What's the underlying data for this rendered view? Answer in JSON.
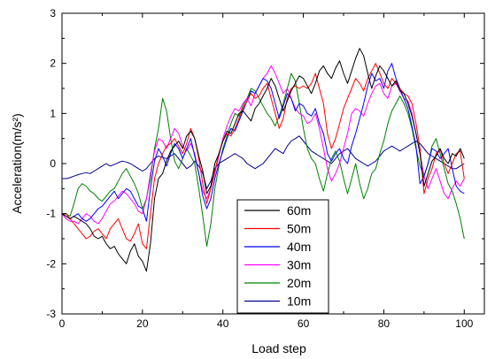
{
  "chart_data": {
    "type": "line",
    "xlabel": "Load step",
    "ylabel": "Acceleration(m/s²)",
    "xlim": [
      0,
      105
    ],
    "ylim": [
      -3,
      3
    ],
    "xticks": [
      0,
      20,
      40,
      60,
      80,
      100
    ],
    "yticks": [
      -3,
      -2,
      -1,
      0,
      1,
      2,
      3
    ],
    "grid": false,
    "legend_position": "bottom-center",
    "x": [
      0,
      1,
      2,
      3,
      4,
      5,
      6,
      7,
      8,
      9,
      10,
      11,
      12,
      13,
      14,
      15,
      16,
      17,
      18,
      19,
      20,
      21,
      22,
      23,
      24,
      25,
      26,
      27,
      28,
      29,
      30,
      31,
      32,
      33,
      34,
      35,
      36,
      37,
      38,
      39,
      40,
      41,
      42,
      43,
      44,
      45,
      46,
      47,
      48,
      49,
      50,
      51,
      52,
      53,
      54,
      55,
      56,
      57,
      58,
      59,
      60,
      61,
      62,
      63,
      64,
      65,
      66,
      67,
      68,
      69,
      70,
      71,
      72,
      73,
      74,
      75,
      76,
      77,
      78,
      79,
      80,
      81,
      82,
      83,
      84,
      85,
      86,
      87,
      88,
      89,
      90,
      91,
      92,
      93,
      94,
      95,
      96,
      97,
      98,
      99,
      100
    ],
    "series": [
      {
        "name": "60m",
        "color": "#000000",
        "values": [
          -1.0,
          -1.05,
          -1.1,
          -1.05,
          -1.1,
          -1.15,
          -1.2,
          -1.3,
          -1.45,
          -1.5,
          -1.45,
          -1.6,
          -1.7,
          -1.65,
          -1.8,
          -1.9,
          -2.0,
          -1.75,
          -1.6,
          -1.85,
          -1.95,
          -2.15,
          -1.6,
          -0.7,
          -0.3,
          -0.2,
          0.05,
          0.25,
          0.35,
          0.45,
          0.3,
          0.55,
          0.65,
          0.5,
          0.15,
          -0.15,
          -0.6,
          -0.45,
          0.0,
          0.2,
          0.45,
          0.65,
          0.6,
          0.8,
          1.0,
          1.05,
          0.95,
          0.85,
          1.1,
          1.2,
          1.35,
          1.5,
          1.7,
          1.55,
          1.3,
          1.05,
          1.25,
          1.45,
          1.6,
          1.75,
          1.7,
          1.55,
          1.4,
          1.6,
          1.85,
          1.95,
          1.8,
          1.7,
          1.9,
          2.05,
          1.8,
          1.6,
          1.85,
          2.1,
          2.3,
          2.15,
          1.8,
          1.5,
          1.75,
          1.95,
          1.85,
          1.7,
          1.55,
          1.65,
          1.45,
          1.4,
          1.2,
          0.95,
          0.6,
          0.2,
          -0.45,
          -0.2,
          0.05,
          0.15,
          0.3,
          0.1,
          0.0,
          0.2,
          0.15,
          0.3,
          0.1
        ]
      },
      {
        "name": "50m",
        "color": "#ff0000",
        "values": [
          -1.0,
          -1.0,
          -1.1,
          -1.2,
          -1.3,
          -1.4,
          -1.5,
          -1.45,
          -1.35,
          -1.3,
          -1.4,
          -1.5,
          -1.3,
          -1.2,
          -1.1,
          -1.3,
          -1.5,
          -1.55,
          -1.4,
          -1.2,
          -1.6,
          -1.7,
          -1.0,
          -0.3,
          0.0,
          0.2,
          0.35,
          0.4,
          0.5,
          0.35,
          0.2,
          0.4,
          0.7,
          0.5,
          0.1,
          -0.4,
          -0.8,
          -0.5,
          -0.15,
          0.2,
          0.45,
          0.6,
          0.55,
          0.7,
          0.9,
          1.1,
          1.25,
          1.4,
          1.3,
          1.35,
          1.5,
          1.6,
          1.3,
          1.0,
          0.7,
          0.9,
          1.3,
          1.5,
          1.55,
          1.5,
          1.55,
          1.5,
          1.6,
          1.8,
          1.5,
          1.2,
          0.6,
          0.3,
          0.5,
          0.8,
          1.1,
          1.3,
          1.5,
          1.7,
          1.6,
          1.45,
          1.7,
          1.85,
          2.0,
          1.8,
          1.6,
          1.5,
          1.7,
          1.6,
          1.5,
          1.4,
          1.35,
          1.2,
          0.8,
          0.3,
          -0.6,
          -0.3,
          -0.1,
          0.2,
          0.3,
          0.0,
          -0.2,
          0.0,
          0.2,
          0.25,
          -0.3
        ]
      },
      {
        "name": "40m",
        "color": "#0000ff",
        "values": [
          -1.0,
          -1.05,
          -1.1,
          -1.05,
          -1.0,
          -1.1,
          -1.15,
          -1.1,
          -1.0,
          -0.9,
          -0.85,
          -0.75,
          -0.65,
          -0.55,
          -0.7,
          -0.6,
          -0.5,
          -0.55,
          -0.7,
          -0.85,
          -0.9,
          -1.15,
          -0.5,
          0.05,
          0.3,
          0.15,
          -0.05,
          0.2,
          0.4,
          0.3,
          0.1,
          0.3,
          0.5,
          0.15,
          -0.2,
          -0.65,
          -0.9,
          -0.7,
          -0.3,
          0.0,
          0.25,
          0.5,
          0.7,
          0.65,
          0.85,
          1.05,
          1.25,
          1.45,
          1.4,
          1.55,
          1.7,
          1.65,
          1.5,
          1.2,
          0.9,
          1.15,
          1.4,
          1.3,
          1.05,
          1.2,
          1.15,
          1.0,
          0.95,
          1.1,
          0.8,
          0.6,
          0.2,
          0.05,
          0.2,
          0.3,
          0.1,
          0.0,
          0.35,
          0.6,
          0.9,
          1.2,
          1.55,
          1.8,
          1.65,
          1.7,
          1.5,
          1.85,
          2.0,
          1.7,
          1.5,
          1.3,
          1.1,
          0.75,
          0.35,
          -0.4,
          -0.25,
          0.0,
          0.3,
          0.25,
          0.1,
          0.2,
          0.3,
          -0.1,
          -0.45,
          -0.55,
          -0.6
        ]
      },
      {
        "name": "30m",
        "color": "#ff00ff",
        "values": [
          -1.0,
          -1.1,
          -1.15,
          -1.15,
          -1.2,
          -1.1,
          -1.0,
          -1.05,
          -1.15,
          -1.2,
          -1.1,
          -0.95,
          -0.8,
          -0.75,
          -0.65,
          -0.55,
          -0.6,
          -0.7,
          -0.8,
          -0.95,
          -1.0,
          -0.7,
          -0.2,
          0.25,
          0.5,
          0.45,
          0.3,
          0.5,
          0.7,
          0.6,
          0.35,
          0.25,
          0.4,
          0.2,
          -0.2,
          -0.55,
          -0.7,
          -0.5,
          -0.2,
          0.15,
          0.5,
          0.75,
          0.95,
          1.1,
          1.05,
          1.2,
          1.3,
          1.15,
          1.4,
          1.55,
          1.7,
          1.8,
          1.95,
          1.8,
          1.6,
          1.4,
          1.5,
          1.3,
          1.1,
          1.0,
          0.95,
          0.8,
          0.85,
          1.0,
          0.7,
          0.3,
          -0.1,
          -0.35,
          -0.2,
          0.0,
          0.3,
          0.6,
          1.0,
          1.1,
          1.05,
          0.95,
          1.2,
          1.4,
          1.55,
          1.6,
          1.4,
          1.3,
          1.55,
          1.6,
          1.45,
          1.3,
          1.25,
          1.0,
          0.6,
          0.2,
          -0.25,
          -0.5,
          -0.3,
          -0.1,
          -0.35,
          -0.6,
          -0.7,
          -0.5,
          -0.35,
          -0.45,
          -0.3
        ]
      },
      {
        "name": "20m",
        "color": "#008000",
        "values": [
          -1.0,
          -1.0,
          -1.05,
          -0.8,
          -0.5,
          -0.4,
          -0.45,
          -0.55,
          -0.6,
          -0.7,
          -0.75,
          -0.65,
          -0.55,
          -0.5,
          -0.35,
          -0.2,
          -0.1,
          -0.25,
          -0.4,
          -0.6,
          -0.9,
          -0.7,
          -0.3,
          0.3,
          0.7,
          1.3,
          1.05,
          0.5,
          0.05,
          -0.1,
          0.1,
          0.3,
          0.15,
          0.0,
          -0.5,
          -1.05,
          -1.65,
          -1.2,
          -0.5,
          -0.05,
          0.3,
          0.55,
          0.8,
          1.0,
          0.95,
          1.15,
          1.3,
          1.5,
          1.45,
          1.3,
          1.15,
          1.0,
          0.9,
          0.75,
          0.95,
          1.2,
          1.5,
          1.8,
          1.65,
          1.2,
          0.7,
          0.3,
          0.1,
          0.0,
          -0.3,
          -0.55,
          -0.2,
          0.1,
          0.25,
          0.05,
          -0.3,
          -0.6,
          -0.3,
          0.0,
          -0.4,
          -0.7,
          -0.5,
          -0.2,
          -0.1,
          0.2,
          0.45,
          0.8,
          1.05,
          1.2,
          1.35,
          1.2,
          1.0,
          0.7,
          0.3,
          -0.05,
          -0.25,
          0.0,
          0.35,
          0.5,
          0.2,
          -0.1,
          -0.4,
          -0.55,
          -0.8,
          -1.1,
          -1.5
        ]
      },
      {
        "name": "10m",
        "color": "#00008b",
        "values": [
          -0.3,
          -0.3,
          -0.28,
          -0.25,
          -0.22,
          -0.2,
          -0.18,
          -0.2,
          -0.15,
          -0.1,
          -0.05,
          0.0,
          -0.05,
          -0.02,
          0.02,
          0.05,
          0.03,
          0.0,
          -0.05,
          -0.1,
          -0.15,
          -0.1,
          0.0,
          0.1,
          0.15,
          0.12,
          0.1,
          0.15,
          0.2,
          0.1,
          0.0,
          -0.1,
          -0.05,
          0.05,
          -0.05,
          -0.2,
          -0.5,
          -0.35,
          -0.1,
          0.0,
          0.05,
          0.1,
          0.15,
          0.2,
          0.15,
          0.1,
          0.0,
          -0.05,
          -0.1,
          -0.05,
          0.0,
          0.1,
          0.2,
          0.3,
          0.25,
          0.2,
          0.35,
          0.45,
          0.5,
          0.55,
          0.45,
          0.35,
          0.25,
          0.2,
          0.15,
          0.1,
          0.05,
          0.0,
          0.1,
          0.2,
          0.25,
          0.3,
          0.2,
          0.1,
          0.05,
          0.0,
          -0.05,
          0.0,
          0.05,
          0.15,
          0.25,
          0.3,
          0.35,
          0.3,
          0.25,
          0.3,
          0.35,
          0.4,
          0.45,
          0.4,
          0.3,
          0.2,
          0.15,
          0.1,
          0.05,
          0.0,
          -0.05,
          -0.1,
          -0.1,
          -0.05,
          0.0
        ]
      }
    ]
  }
}
